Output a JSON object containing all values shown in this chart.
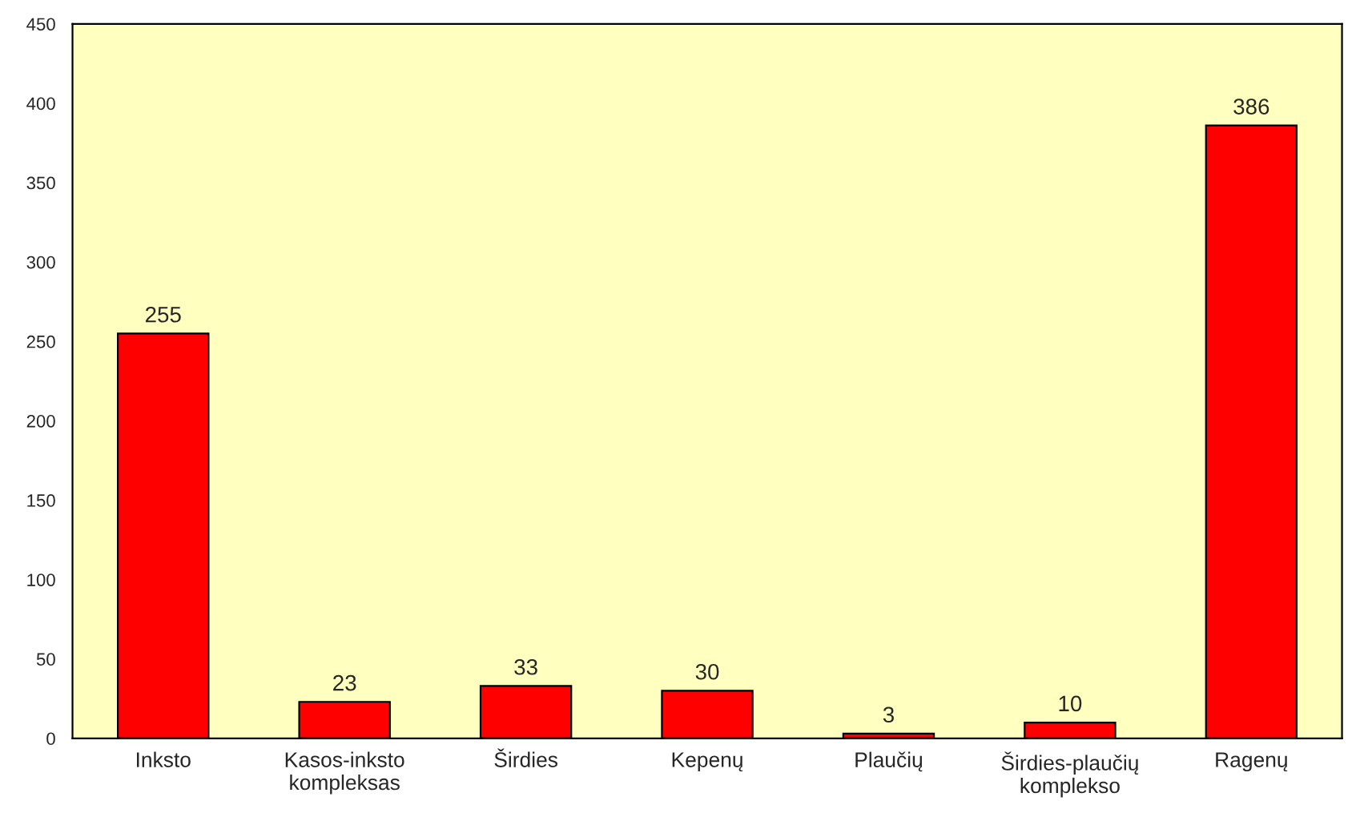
{
  "chart_data": {
    "type": "bar",
    "categories": [
      "Inksto",
      "Kasos-inksto\nkompleksas",
      "Širdies",
      "Kepenų",
      "Plaučių",
      "Širdies-plaučių\nkomplekso",
      "Ragenų"
    ],
    "values": [
      255,
      23,
      33,
      30,
      3,
      10,
      386
    ],
    "color": "#ff0000",
    "ylim": [
      0,
      450
    ],
    "yticks": [
      0,
      50,
      100,
      150,
      200,
      250,
      300,
      350,
      400,
      450
    ],
    "data_labels": true,
    "grid": false,
    "legend": false
  }
}
